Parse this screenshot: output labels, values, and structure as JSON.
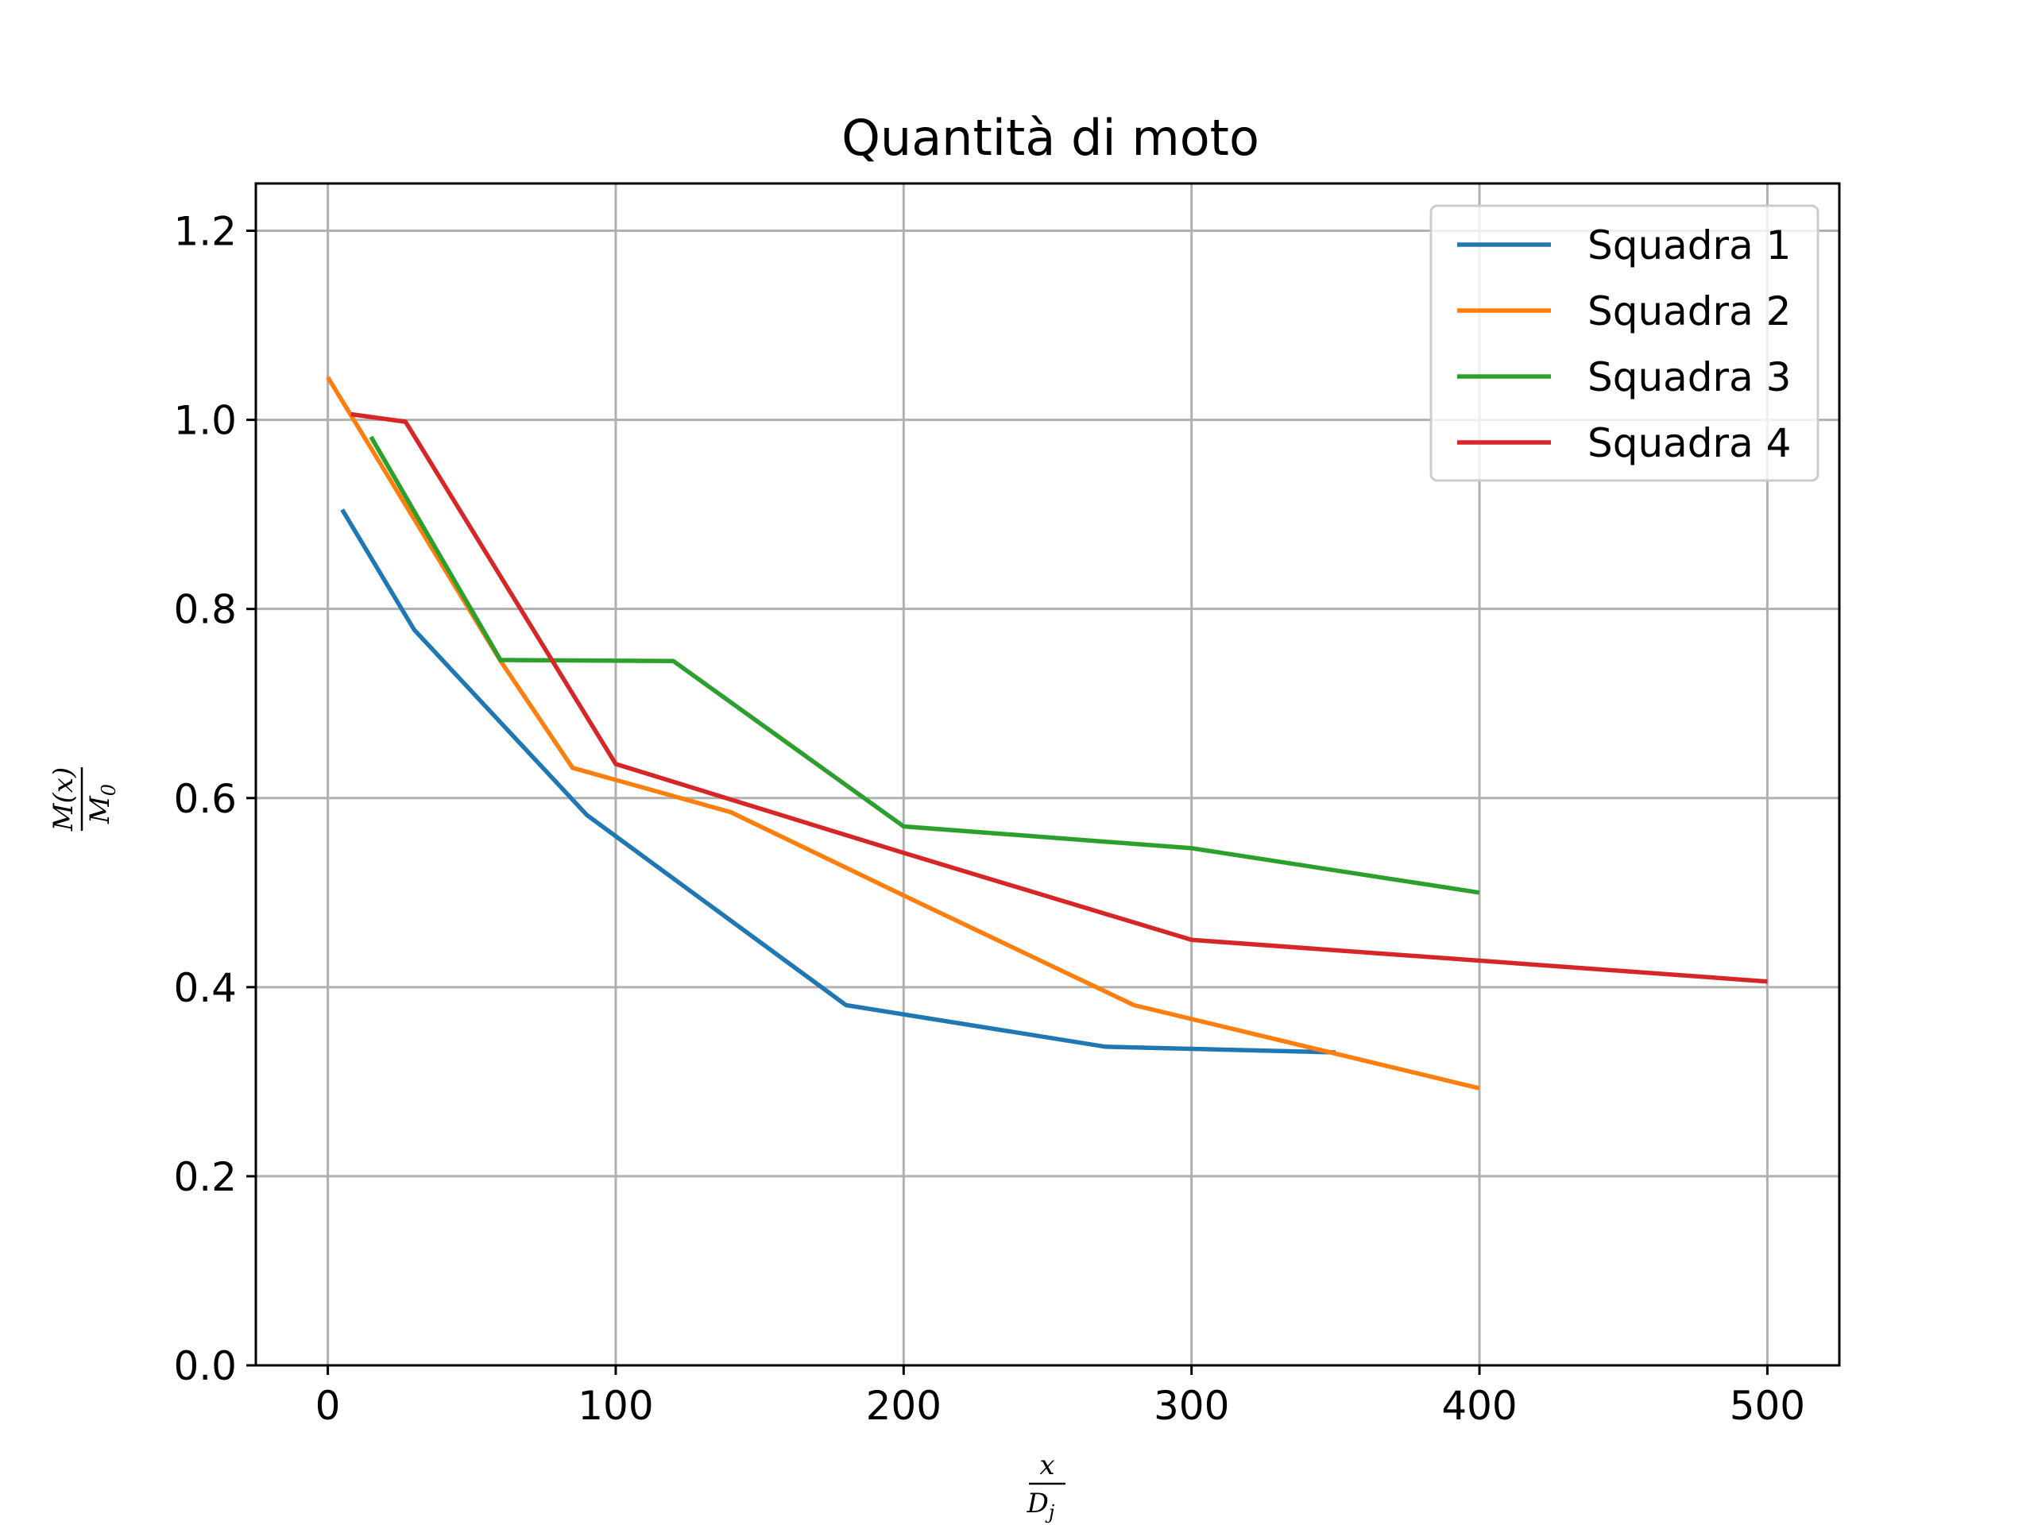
{
  "chart_data": {
    "type": "line",
    "title": "Quantità di moto",
    "xlabel": {
      "numerator": "x",
      "denominator": "D",
      "denominator_sub": "j"
    },
    "ylabel": {
      "numerator": "M(x)",
      "denominator": "M",
      "denominator_sub": "0"
    },
    "xlim": [
      -25,
      525
    ],
    "ylim": [
      0,
      1.25
    ],
    "xticks": [
      0,
      100,
      200,
      300,
      400,
      500
    ],
    "xtick_labels": [
      "0",
      "100",
      "200",
      "300",
      "400",
      "500"
    ],
    "yticks": [
      0.0,
      0.2,
      0.4,
      0.6,
      0.8,
      1.0,
      1.2
    ],
    "ytick_labels": [
      "0.0",
      "0.2",
      "0.4",
      "0.6",
      "0.8",
      "1.0",
      "1.2"
    ],
    "grid": true,
    "legend_position": "top-right",
    "series": [
      {
        "name": "Squadra 1",
        "color": "#1f77b4",
        "x": [
          5,
          30,
          90,
          180,
          270,
          350
        ],
        "y": [
          0.905,
          0.778,
          0.582,
          0.381,
          0.337,
          0.331
        ]
      },
      {
        "name": "Squadra 2",
        "color": "#ff7f0e",
        "x": [
          0,
          60,
          85,
          140,
          200,
          280,
          400
        ],
        "y": [
          1.045,
          0.745,
          0.632,
          0.585,
          0.497,
          0.381,
          0.293
        ]
      },
      {
        "name": "Squadra 3",
        "color": "#2ca02c",
        "x": [
          15,
          60,
          120,
          200,
          300,
          400
        ],
        "y": [
          0.982,
          0.746,
          0.745,
          0.57,
          0.547,
          0.5
        ]
      },
      {
        "name": "Squadra 4",
        "color": "#d62728",
        "x": [
          8,
          27,
          100,
          200,
          300,
          500
        ],
        "y": [
          1.006,
          0.998,
          0.636,
          0.542,
          0.45,
          0.406
        ]
      }
    ]
  }
}
